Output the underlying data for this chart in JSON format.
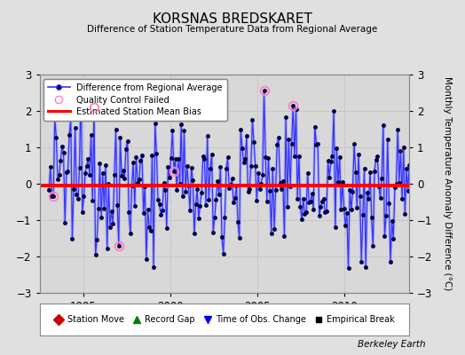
{
  "title": "KORSNAS BREDSKARET",
  "subtitle": "Difference of Station Temperature Data from Regional Average",
  "ylabel": "Monthly Temperature Anomaly Difference (°C)",
  "xlim": [
    1992.5,
    2013.7
  ],
  "ylim": [
    -3,
    3
  ],
  "yticks": [
    -3,
    -2,
    -1,
    0,
    1,
    2,
    3
  ],
  "xticks": [
    1995,
    2000,
    2005,
    2010
  ],
  "bias_value": -0.05,
  "background_color": "#e0e0e0",
  "plot_bg_color": "#d8d8d8",
  "line_color": "#3333ff",
  "line_color_light": "#9999ff",
  "bias_color": "#ff0000",
  "dot_color": "#000044",
  "qc_color": "#ff80c0",
  "watermark": "Berkeley Earth",
  "seed": 42
}
